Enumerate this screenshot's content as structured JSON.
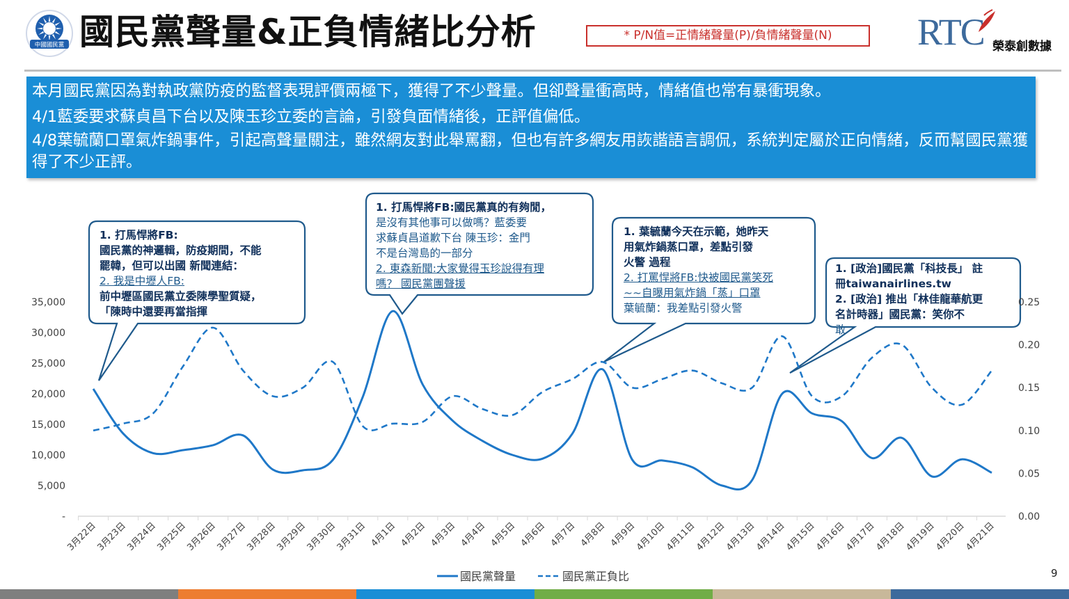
{
  "header": {
    "title": "國民黨聲量&正負情緒比分析",
    "logo_icon": "kmt-emblem-icon",
    "logo_text": "中國國民黨",
    "formula_note": "* P/N值=正情緒聲量(P)/負情緒聲量(N)",
    "brand_rt": "RTC",
    "brand_name": "榮泰創數據"
  },
  "summary": {
    "lines": [
      "本月國民黨因為對執政黨防疫的監督表現評價兩極下，獲得了不少聲量。但卻聲量衝高時，情緒值也常有暴衝現象。",
      "4/1藍委要求蘇貞昌下台以及陳玉珍立委的言論，引發負面情緒後，正評值偏低。",
      "4/8葉毓蘭口罩氣炸鍋事件，引起高聲量關注，雖然網友對此舉罵翻，但也有許多網友用詼諧語言調侃，系統判定屬於正向情緒，反而幫國民黨獲得了不少正評。"
    ]
  },
  "callouts": [
    {
      "lines": [
        {
          "text": "1.   打馬悍將FB:",
          "style": "b"
        },
        {
          "text": "國民黨的神邏輯，防疫期間，不能",
          "style": "b"
        },
        {
          "text": "罷韓，但可以出國 新聞連結：",
          "style": "b"
        },
        {
          "text": "2. 我是中壢人FB:",
          "style": "u"
        },
        {
          "text": "前中壢區國民黨立委陳學聖質疑，",
          "style": "b"
        },
        {
          "text": "「陳時中還要再當指揮",
          "style": "b"
        }
      ]
    },
    {
      "lines": [
        {
          "text": "1.   打馬悍將FB:國民黨真的有夠閒，",
          "style": "b"
        },
        {
          "text": "是沒有其他事可以做嗎？藍委要",
          "style": ""
        },
        {
          "text": "求蘇貞昌道歉下台 陳玉珍：金門",
          "style": ""
        },
        {
          "text": "不是台灣島的一部分",
          "style": ""
        },
        {
          "text": "2. 東森新聞:大家覺得玉珍說得有理",
          "style": "u"
        },
        {
          "text": "嗎？ 國民黨團聲援",
          "style": "u"
        }
      ]
    },
    {
      "lines": [
        {
          "text": "1.   葉毓蘭今天在示範，她昨天",
          "style": "b"
        },
        {
          "text": "用氣炸鍋蒸口罩，差點引發",
          "style": "b"
        },
        {
          "text": "火警 過程",
          "style": "b"
        },
        {
          "text": "2.   打罵悍將FB:快被國民黨笑死",
          "style": "u"
        },
        {
          "text": "~~自曝用氣炸鍋「蒸」口罩",
          "style": "u"
        },
        {
          "text": "葉毓蘭：我差點引發火警",
          "style": ""
        }
      ]
    },
    {
      "lines": [
        {
          "text": "1.   [政治]國民黨「科技長」 註",
          "style": "b"
        },
        {
          "text": "冊taiwanairlines.tw",
          "style": "b"
        },
        {
          "text": "2.   [政治] 推出「林佳龍華航更",
          "style": "b"
        },
        {
          "text": "名計時器」國民黨：笑你不",
          "style": "b"
        },
        {
          "text": "敢",
          "style": ""
        }
      ]
    }
  ],
  "chart_data": {
    "type": "line",
    "categories": [
      "3月22日",
      "3月23日",
      "3月24日",
      "3月25日",
      "3月26日",
      "3月27日",
      "3月28日",
      "3月29日",
      "3月30日",
      "3月31日",
      "4月1日",
      "4月2日",
      "4月3日",
      "4月4日",
      "4月5日",
      "4月6日",
      "4月7日",
      "4月8日",
      "4月9日",
      "4月10日",
      "4月11日",
      "4月12日",
      "4月13日",
      "4月14日",
      "4月15日",
      "4月16日",
      "4月17日",
      "4月18日",
      "4月19日",
      "4月20日",
      "4月21日"
    ],
    "series": [
      {
        "name": "國民黨聲量",
        "axis": "left",
        "style": "solid",
        "values": [
          20800,
          13500,
          10300,
          10800,
          11600,
          13200,
          7600,
          7500,
          9200,
          19500,
          33500,
          21500,
          15600,
          12300,
          10000,
          9400,
          13500,
          24000,
          9200,
          9100,
          8000,
          5000,
          5900,
          20000,
          16800,
          15500,
          9500,
          12800,
          6500,
          9300,
          7100
        ]
      },
      {
        "name": "國民黨正負比",
        "axis": "right",
        "style": "dashed",
        "values": [
          0.1,
          0.108,
          0.12,
          0.175,
          0.22,
          0.17,
          0.14,
          0.15,
          0.18,
          0.105,
          0.108,
          0.11,
          0.14,
          0.125,
          0.118,
          0.145,
          0.16,
          0.18,
          0.15,
          0.16,
          0.17,
          0.155,
          0.15,
          0.21,
          0.14,
          0.14,
          0.185,
          0.2,
          0.15,
          0.13,
          0.17
        ]
      }
    ],
    "y_left": {
      "ticks": [
        "-",
        "5,000",
        "10,000",
        "15,000",
        "20,000",
        "25,000",
        "30,000",
        "35,000"
      ],
      "range": [
        0,
        35000
      ]
    },
    "y_right": {
      "ticks": [
        "0.00",
        "0.05",
        "0.10",
        "0.15",
        "0.20",
        "0.25"
      ],
      "range": [
        0,
        0.25
      ]
    },
    "grid": false,
    "legend_position": "bottom",
    "color": "#1f78c8"
  },
  "footer": {
    "page_number": "9",
    "bar_colors": [
      "#7f7f7f",
      "#ed7d31",
      "#1a8ed6",
      "#70ad47",
      "#c8b89a",
      "#3d6a9c"
    ]
  }
}
